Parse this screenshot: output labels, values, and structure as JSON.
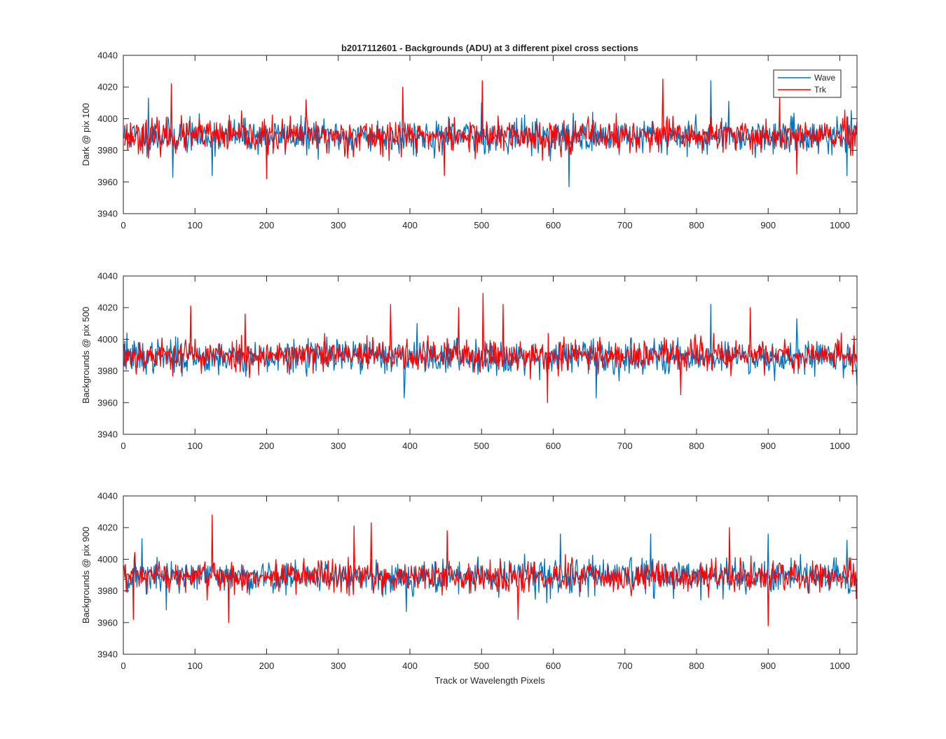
{
  "figure": {
    "title": "b2017112601 - Backgrounds (ADU) at 3 different pixel cross sections",
    "xlabel": "Track or Wavelength Pixels"
  },
  "legend": {
    "location": "top-right of first subplot",
    "entries": [
      {
        "name": "Wave",
        "color": "#0072BD"
      },
      {
        "name": "Trk",
        "color": "#FF0000"
      }
    ]
  },
  "chart_data": [
    {
      "type": "line",
      "title": "b2017112601 - Backgrounds (ADU) at 3 different pixel cross sections",
      "xlabel": "",
      "ylabel": "Dark @ pix 100",
      "xlim": [
        0,
        1024
      ],
      "ylim": [
        3940,
        4040
      ],
      "xticks": [
        "0",
        "100",
        "200",
        "300",
        "400",
        "500",
        "600",
        "700",
        "800",
        "900",
        "1000"
      ],
      "yticks": [
        "3940",
        "3960",
        "3980",
        "4000",
        "4020",
        "4040"
      ],
      "x_range": [
        1,
        1024
      ],
      "series": [
        {
          "name": "Wave",
          "color": "#0072BD",
          "mean": 3989,
          "spread": 5.2,
          "seed": 11,
          "spikes": [
            [
              35,
              4013
            ],
            [
              69,
              3963
            ],
            [
              124,
              3964
            ],
            [
              500,
              4010
            ],
            [
              622,
              3957
            ],
            [
              820,
              4024
            ],
            [
              845,
              4011
            ],
            [
              1010,
              3964
            ]
          ]
        },
        {
          "name": "Trk",
          "color": "#FF0000",
          "mean": 3989,
          "spread": 5.2,
          "seed": 23,
          "spikes": [
            [
              67,
              4022
            ],
            [
              200,
              3962
            ],
            [
              255,
              4012
            ],
            [
              390,
              4020
            ],
            [
              448,
              3964
            ],
            [
              501,
              4024
            ],
            [
              753,
              4025
            ],
            [
              916,
              4014
            ],
            [
              940,
              3965
            ]
          ]
        }
      ]
    },
    {
      "type": "line",
      "xlabel": "",
      "ylabel": "Backgrounds @ pix 500",
      "xlim": [
        0,
        1024
      ],
      "ylim": [
        3940,
        4040
      ],
      "xticks": [
        "0",
        "100",
        "200",
        "300",
        "400",
        "500",
        "600",
        "700",
        "800",
        "900",
        "1000"
      ],
      "yticks": [
        "3940",
        "3960",
        "3980",
        "4000",
        "4020",
        "4040"
      ],
      "x_range": [
        1,
        1024
      ],
      "series": [
        {
          "name": "Wave",
          "color": "#0072BD",
          "mean": 3989,
          "spread": 5.2,
          "seed": 37,
          "spikes": [
            [
              5,
              4004
            ],
            [
              392,
              3963
            ],
            [
              410,
              4010
            ],
            [
              660,
              3963
            ],
            [
              820,
              4022
            ],
            [
              940,
              4013
            ],
            [
              1024,
              3971
            ]
          ]
        },
        {
          "name": "Trk",
          "color": "#FF0000",
          "mean": 3990,
          "spread": 5.0,
          "seed": 53,
          "spikes": [
            [
              94,
              4021
            ],
            [
              170,
              4016
            ],
            [
              373,
              4022
            ],
            [
              468,
              4020
            ],
            [
              502,
              4029
            ],
            [
              530,
              4022
            ],
            [
              592,
              3960
            ],
            [
              778,
              3965
            ],
            [
              875,
              4020
            ]
          ]
        }
      ]
    },
    {
      "type": "line",
      "xlabel": "Track or Wavelength Pixels",
      "ylabel": "Backgrounds @ pix 900",
      "xlim": [
        0,
        1024
      ],
      "ylim": [
        3940,
        4040
      ],
      "xticks": [
        "0",
        "100",
        "200",
        "300",
        "400",
        "500",
        "600",
        "700",
        "800",
        "900",
        "1000"
      ],
      "yticks": [
        "3940",
        "3960",
        "3980",
        "4000",
        "4020",
        "4040"
      ],
      "x_range": [
        1,
        1024
      ],
      "series": [
        {
          "name": "Wave",
          "color": "#0072BD",
          "mean": 3989,
          "spread": 5.2,
          "seed": 71,
          "spikes": [
            [
              26,
              4013
            ],
            [
              60,
              3968
            ],
            [
              395,
              3967
            ],
            [
              610,
              4016
            ],
            [
              736,
              4016
            ],
            [
              900,
              4016
            ],
            [
              1010,
              4012
            ]
          ]
        },
        {
          "name": "Trk",
          "color": "#FF0000",
          "mean": 3989,
          "spread": 5.0,
          "seed": 97,
          "spikes": [
            [
              14,
              3962
            ],
            [
              124,
              4028
            ],
            [
              147,
              3960
            ],
            [
              322,
              4021
            ],
            [
              346,
              4023
            ],
            [
              452,
              4018
            ],
            [
              551,
              3962
            ],
            [
              846,
              4020
            ],
            [
              900,
              3958
            ]
          ]
        }
      ]
    }
  ]
}
